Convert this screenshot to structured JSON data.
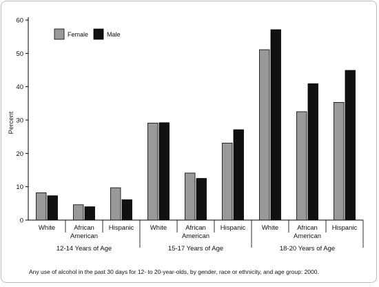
{
  "chart_data": {
    "type": "bar",
    "ylabel": "Percent",
    "ylim": [
      0,
      60
    ],
    "yticks": [
      0,
      10,
      20,
      30,
      40,
      50,
      60
    ],
    "grid": false,
    "legend_position": "top-left",
    "series": [
      {
        "name": "Female",
        "color": "#999999",
        "values": [
          8.2,
          4.6,
          9.7,
          29.1,
          14.1,
          23.1,
          51.1,
          32.5,
          35.3
        ]
      },
      {
        "name": "Male",
        "color": "#111111",
        "values": [
          7.3,
          4.0,
          6.1,
          29.2,
          12.5,
          27.1,
          57.1,
          40.9,
          44.9
        ]
      }
    ],
    "categories": [
      [
        "White"
      ],
      [
        "African",
        "American"
      ],
      [
        "Hispanic"
      ],
      [
        "White"
      ],
      [
        "African",
        "American"
      ],
      [
        "Hispanic"
      ],
      [
        "White"
      ],
      [
        "African",
        "American"
      ],
      [
        "Hispanic"
      ]
    ],
    "groups": [
      {
        "label": "12-14 Years of Age",
        "count": 3
      },
      {
        "label": "15-17 Years of Age",
        "count": 3
      },
      {
        "label": "18-20 Years of Age",
        "count": 3
      }
    ],
    "caption": "Any use of alcohol in the past 30 days for 12- to 20-year-olds, by gender, race or ethnicity, and age group: 2000."
  }
}
